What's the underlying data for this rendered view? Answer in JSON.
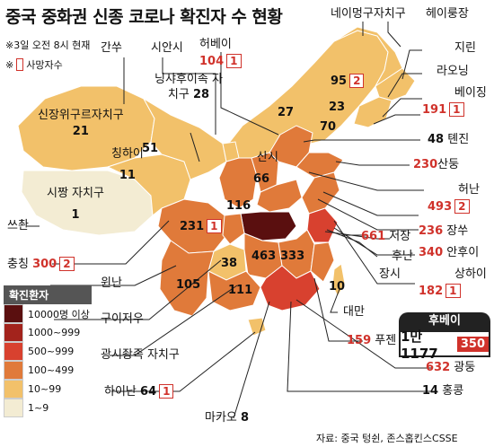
{
  "title": "중국 중화권 신종 코로나 확진자 수 현황",
  "as_of": "※3일 오전 8시 현재",
  "death_note": {
    "marker": "※",
    "label": "사망자수"
  },
  "legend": {
    "title": "확진환자",
    "items": [
      {
        "label": "10000명 이상",
        "color": "#5a0f0f"
      },
      {
        "label": "1000~999",
        "color": "#a3231c"
      },
      {
        "label": "500~999",
        "color": "#d8412f"
      },
      {
        "label": "100~499",
        "color": "#e07a3a"
      },
      {
        "label": "10~99",
        "color": "#f2c16a"
      },
      {
        "label": "1~9",
        "color": "#f3ecd3"
      }
    ]
  },
  "regions": [
    {
      "name": "간쑤"
    },
    {
      "name": "시안시"
    },
    {
      "name": "허베이",
      "cases": "104",
      "deaths": "1"
    },
    {
      "name": "네이멍구자치구"
    },
    {
      "name": "헤이룽장"
    },
    {
      "name": "지린"
    },
    {
      "name": "라오닝"
    },
    {
      "name": "베이징",
      "cases": "191",
      "deaths": "1"
    },
    {
      "name": "톈진",
      "cases": "48"
    },
    {
      "name": "산둥",
      "cases": "230"
    },
    {
      "name": "허난",
      "cases": "493",
      "deaths": "2"
    },
    {
      "name": "장쑤",
      "cases": "236"
    },
    {
      "name": "안후이",
      "cases": "340"
    },
    {
      "name": "상하이",
      "cases": "182",
      "deaths": "1"
    },
    {
      "name": "저장",
      "cases": "661"
    },
    {
      "name": "후난"
    },
    {
      "name": "장시"
    },
    {
      "name": "쓰촨"
    },
    {
      "name": "충칭",
      "cases": "300",
      "deaths": "2"
    },
    {
      "name": "윈난"
    },
    {
      "name": "구이저우"
    },
    {
      "name": "광시좡족 자치구"
    },
    {
      "name": "하이난",
      "cases": "64",
      "deaths": "1"
    },
    {
      "name": "마카오",
      "cases": "8"
    },
    {
      "name": "홍콩",
      "cases": "14"
    },
    {
      "name": "광둥",
      "cases": "632"
    },
    {
      "name": "푸젠",
      "cases": "159"
    },
    {
      "name": "대만"
    },
    {
      "name": "닝샤후이족 자치구",
      "cases": "28"
    },
    {
      "name": "신장위구르자치구",
      "cases": "21"
    },
    {
      "name": "칭하이",
      "cases": "11"
    },
    {
      "name": "시짱 자치구",
      "cases": "1"
    },
    {
      "name": "산시"
    }
  ],
  "onmap_numbers": {
    "gansu": "51",
    "neimenggu": "27",
    "heilongjiang": "95",
    "heilongjiang_deaths": "2",
    "jilin": "23",
    "liaoning": "70",
    "shanxi": "66",
    "shaanxi": "116",
    "sichuan": "231",
    "sichuan_deaths": "1",
    "guizhou": "38",
    "hunan": "463",
    "jiangxi": "333",
    "yunnan": "105",
    "guangxi": "111",
    "taiwan": "10"
  },
  "hubei": {
    "name": "후베이",
    "cases": "1만1177",
    "deaths": "350"
  },
  "source": "자료: 중국 텅쉰, 존스홉킨스CSSE"
}
